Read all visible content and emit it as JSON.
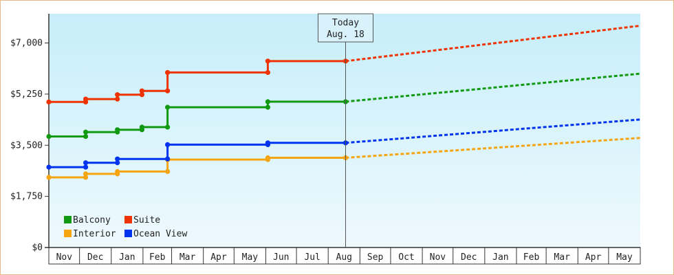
{
  "chart_data": {
    "type": "line",
    "step": true,
    "x_axis_type": "date",
    "months": [
      "Nov",
      "Dec",
      "Jan",
      "Feb",
      "Mar",
      "Apr",
      "May",
      "Jun",
      "Jul",
      "Aug",
      "Sep",
      "Oct",
      "Nov",
      "Dec",
      "Jan",
      "Feb",
      "Mar",
      "Apr",
      "May"
    ],
    "x_range": [
      "2018-11-01",
      "2020-06-01"
    ],
    "ylim": [
      0,
      8000
    ],
    "y_ticks": [
      0,
      1750,
      3500,
      5250,
      7000
    ],
    "y_tick_labels": [
      "$0",
      "$1,750",
      "$3,500",
      "$5,250",
      "$7,000"
    ],
    "today_marker": {
      "line1": "Today",
      "line2": "Aug. 18",
      "date": "2019-08-18"
    },
    "grid": false,
    "legend_position": "bottom-left",
    "series": [
      {
        "name": "Balcony",
        "color": "#119911",
        "history": [
          [
            "2018-11-01",
            3800
          ],
          [
            "2018-12-07",
            3800
          ],
          [
            "2018-12-07",
            3950
          ],
          [
            "2019-01-07",
            3950
          ],
          [
            "2019-01-07",
            4030
          ],
          [
            "2019-01-31",
            4030
          ],
          [
            "2019-01-31",
            4120
          ],
          [
            "2019-02-25",
            4120
          ],
          [
            "2019-02-25",
            4800
          ],
          [
            "2019-06-03",
            4800
          ],
          [
            "2019-06-03",
            4990
          ],
          [
            "2019-08-18",
            4990
          ]
        ],
        "projection": [
          [
            "2019-08-18",
            4990
          ],
          [
            "2020-06-01",
            5950
          ]
        ]
      },
      {
        "name": "Suite",
        "color": "#ee3300",
        "history": [
          [
            "2018-11-01",
            4980
          ],
          [
            "2018-12-07",
            4980
          ],
          [
            "2018-12-07",
            5080
          ],
          [
            "2019-01-07",
            5080
          ],
          [
            "2019-01-07",
            5230
          ],
          [
            "2019-01-31",
            5230
          ],
          [
            "2019-01-31",
            5360
          ],
          [
            "2019-02-25",
            5360
          ],
          [
            "2019-02-25",
            5990
          ],
          [
            "2019-06-03",
            5990
          ],
          [
            "2019-06-03",
            6380
          ],
          [
            "2019-08-18",
            6380
          ]
        ],
        "projection": [
          [
            "2019-08-18",
            6380
          ],
          [
            "2020-06-01",
            7590
          ]
        ]
      },
      {
        "name": "Interior",
        "color": "#f5a511",
        "history": [
          [
            "2018-11-01",
            2400
          ],
          [
            "2018-12-07",
            2400
          ],
          [
            "2018-12-07",
            2520
          ],
          [
            "2019-01-07",
            2520
          ],
          [
            "2019-01-07",
            2600
          ],
          [
            "2019-02-25",
            2600
          ],
          [
            "2019-02-25",
            3010
          ],
          [
            "2019-06-03",
            3010
          ],
          [
            "2019-06-03",
            3070
          ],
          [
            "2019-08-18",
            3070
          ]
        ],
        "projection": [
          [
            "2019-08-18",
            3070
          ],
          [
            "2020-06-01",
            3750
          ]
        ]
      },
      {
        "name": "Ocean View",
        "color": "#0033ee",
        "history": [
          [
            "2018-11-01",
            2750
          ],
          [
            "2018-12-07",
            2750
          ],
          [
            "2018-12-07",
            2900
          ],
          [
            "2019-01-07",
            2900
          ],
          [
            "2019-01-07",
            3030
          ],
          [
            "2019-02-25",
            3030
          ],
          [
            "2019-02-25",
            3520
          ],
          [
            "2019-06-03",
            3520
          ],
          [
            "2019-06-03",
            3580
          ],
          [
            "2019-08-18",
            3580
          ]
        ],
        "projection": [
          [
            "2019-08-18",
            3580
          ],
          [
            "2020-06-01",
            4380
          ]
        ]
      }
    ]
  }
}
